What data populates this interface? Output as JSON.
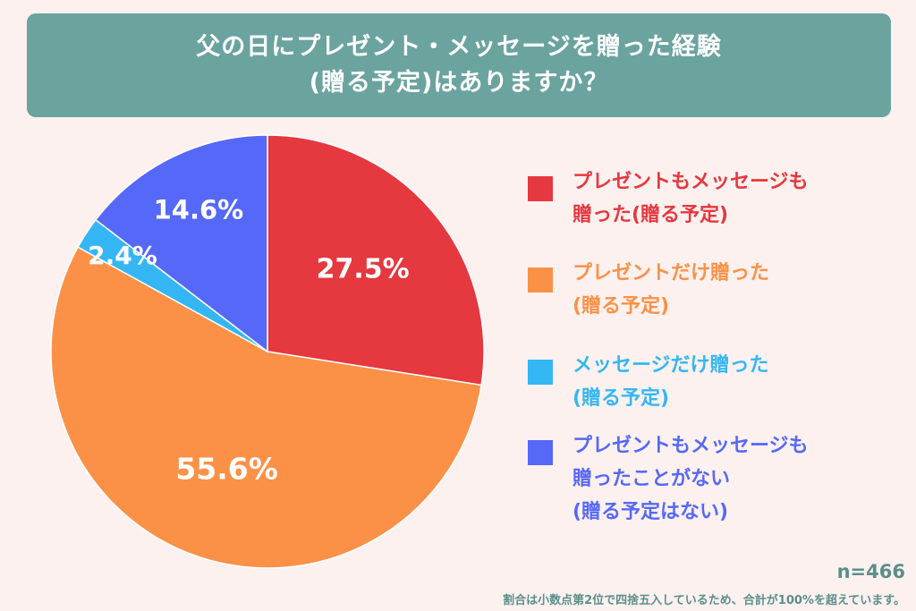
{
  "title": {
    "line1": "父の日にプレゼント・メッセージを贈った経験",
    "line2": "(贈る予定)はありますか？"
  },
  "colors": {
    "background": "#fcf1ef",
    "title_bg": "#6ba39f",
    "red": "#e5383f",
    "orange": "#fb9147",
    "cyan": "#35b6f4",
    "blue": "#5668f8"
  },
  "chart_data": {
    "type": "pie",
    "slices": [
      {
        "name": "プレゼントもメッセージも贈った(贈る予定)",
        "value": 27.5,
        "label": "27.5%",
        "color": "#e5383f"
      },
      {
        "name": "プレゼントだけ贈った(贈る予定)",
        "value": 55.6,
        "label": "55.6%",
        "color": "#fb9147"
      },
      {
        "name": "メッセージだけ贈った(贈る予定)",
        "value": 2.4,
        "label": "2.4%",
        "color": "#35b6f4"
      },
      {
        "name": "プレゼントもメッセージも贈ったことがない(贈る予定はない)",
        "value": 14.6,
        "label": "14.6%",
        "color": "#5668f8"
      }
    ],
    "start": "12 o'clock",
    "direction": "clockwise",
    "legend_position": "right"
  },
  "legend": [
    {
      "lines": [
        "プレゼントもメッセージも",
        "贈った(贈る予定)"
      ],
      "color": "#e5383f"
    },
    {
      "lines": [
        "プレゼントだけ贈った",
        "(贈る予定)"
      ],
      "color": "#fb9147"
    },
    {
      "lines": [
        "メッセージだけ贈った",
        "(贈る予定)"
      ],
      "color": "#35b6f4"
    },
    {
      "lines": [
        "プレゼントもメッセージも",
        "贈ったことがない",
        "(贈る予定はない)"
      ],
      "color": "#5668f8"
    }
  ],
  "sample_size": "n=466",
  "footnote": "割合は小数点第2位で四捨五入しているため、合計が100%を超えています。"
}
